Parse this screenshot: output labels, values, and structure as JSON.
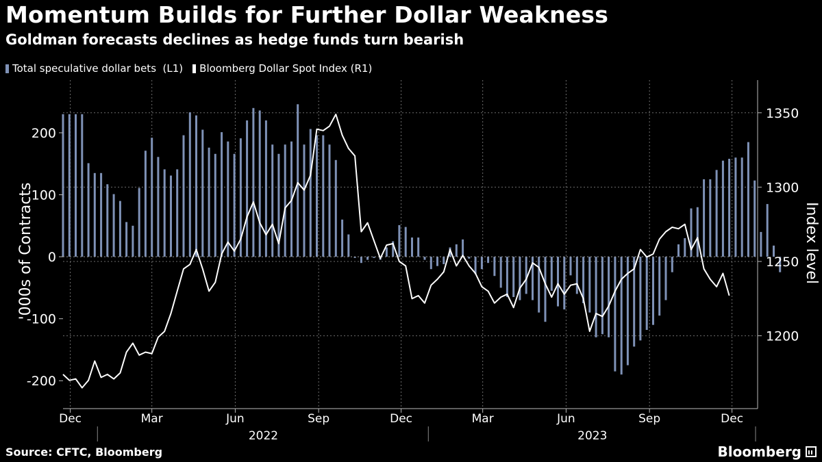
{
  "header": {
    "title": "Momentum Builds for Further Dollar Weakness",
    "subtitle": "Goldman forecasts declines as hedge funds turn bearish"
  },
  "footer": {
    "source": "Source: CFTC, Bloomberg",
    "brand": "Bloomberg"
  },
  "colors": {
    "bars": "#7f92b7",
    "line": "#ffffff",
    "grid": "#6e6e6e",
    "axis": "#bbbbbb"
  },
  "chart_data": {
    "type": "bar",
    "legend": [
      {
        "label": "Total speculative dollar bets  (L1)",
        "color": "#7f92b7",
        "shape": "bar"
      },
      {
        "label": "Bloomberg Dollar Spot Index (R1)",
        "color": "#ffffff",
        "shape": "line"
      }
    ],
    "x_ticks": [
      "Dec",
      "Mar",
      "Jun",
      "Sep",
      "Dec",
      "Mar",
      "Jun",
      "Sep",
      "Dec"
    ],
    "x_tick_dates": [
      "2021-12-01",
      "2022-03-01",
      "2022-06-01",
      "2022-09-01",
      "2022-12-01",
      "2023-03-01",
      "2023-06-01",
      "2023-09-01",
      "2023-12-01"
    ],
    "years": [
      "2022",
      "2023"
    ],
    "x_range": [
      "2021-11-23",
      "2023-12-27"
    ],
    "y_left": {
      "label": "'000s of Contracts",
      "ticks": [
        "200",
        "100",
        "0",
        "-100",
        "-200"
      ],
      "tick_values": [
        200,
        100,
        0,
        -100,
        -200
      ],
      "range": [
        -245,
        285
      ]
    },
    "y_right": {
      "label": "Index level",
      "ticks": [
        "1350",
        "1300",
        "1250",
        "1200"
      ],
      "tick_values": [
        1350,
        1300,
        1250,
        1200
      ],
      "range": [
        1151,
        1372
      ]
    },
    "grid": true,
    "series": [
      {
        "name": "Total speculative dollar bets  (L1)",
        "type": "bar",
        "start_date": "2021-11-23",
        "interval_days": 7,
        "values": [
          230,
          230,
          230,
          230,
          151,
          135,
          135,
          117,
          101,
          90,
          56,
          50,
          111,
          171,
          192,
          161,
          141,
          131,
          141,
          196,
          233,
          228,
          205,
          176,
          166,
          201,
          186,
          166,
          191,
          220,
          240,
          236,
          220,
          181,
          166,
          181,
          186,
          246,
          181,
          206,
          196,
          196,
          181,
          156,
          60,
          36,
          -2,
          -10,
          -5,
          -2,
          -5,
          15,
          25,
          51,
          48,
          31,
          31,
          -5,
          -20,
          -15,
          -12,
          15,
          20,
          28,
          -3,
          -28,
          -20,
          -10,
          -31,
          -50,
          -65,
          -65,
          -70,
          -60,
          -70,
          -90,
          -105,
          -55,
          -80,
          -85,
          -30,
          -60,
          -75,
          -90,
          -130,
          -125,
          -130,
          -185,
          -190,
          -175,
          -145,
          -135,
          -118,
          -110,
          -95,
          -70,
          -25,
          20,
          30,
          78,
          80,
          125,
          125,
          140,
          155,
          158,
          160,
          160,
          185,
          123,
          40,
          85,
          18,
          -25
        ]
      },
      {
        "name": "Bloomberg Dollar Spot Index (R1)",
        "type": "line",
        "start_date": "2021-11-23",
        "interval_days": 7,
        "values": [
          1174,
          1170,
          1171,
          1165,
          1170,
          1183,
          1172,
          1174,
          1171,
          1175,
          1189,
          1195,
          1187,
          1189,
          1188,
          1199,
          1203,
          1215,
          1230,
          1245,
          1248,
          1258,
          1245,
          1230,
          1236,
          1255,
          1263,
          1257,
          1265,
          1280,
          1290,
          1276,
          1268,
          1275,
          1262,
          1286,
          1291,
          1303,
          1298,
          1308,
          1339,
          1338,
          1341,
          1349,
          1335,
          1326,
          1321,
          1270,
          1276,
          1264,
          1252,
          1261,
          1262,
          1250,
          1247,
          1225,
          1227,
          1222,
          1234,
          1238,
          1243,
          1258,
          1247,
          1254,
          1247,
          1242,
          1233,
          1230,
          1222,
          1226,
          1228,
          1219,
          1232,
          1238,
          1249,
          1246,
          1235,
          1226,
          1235,
          1228,
          1234,
          1235,
          1225,
          1203,
          1215,
          1213,
          1220,
          1230,
          1238,
          1242,
          1245,
          1258,
          1253,
          1255,
          1265,
          1270,
          1273,
          1272,
          1275,
          1258,
          1266,
          1245,
          1238,
          1233,
          1242,
          1227
        ]
      }
    ]
  }
}
